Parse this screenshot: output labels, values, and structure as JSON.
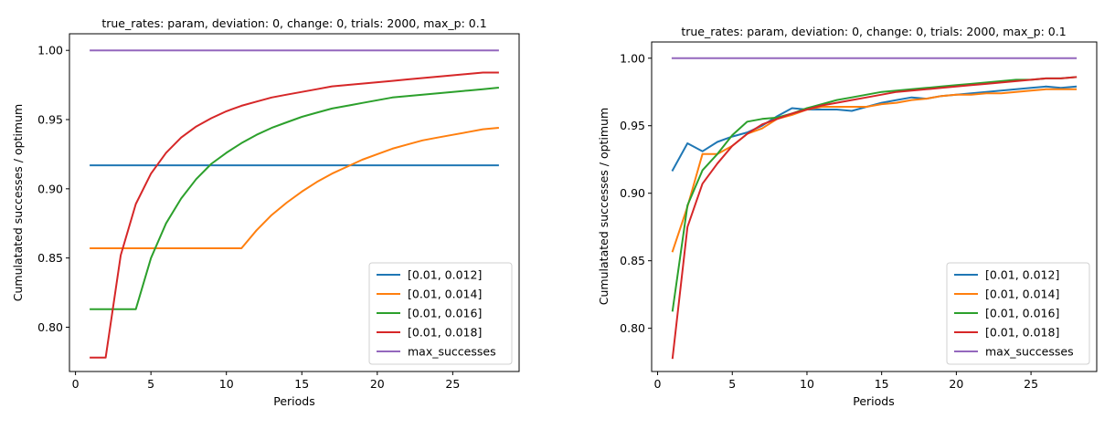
{
  "chart_data": [
    {
      "type": "line",
      "title": "true_rates: param, deviation: 0, change: 0, trials: 2000, max_p: 0.1",
      "xlabel": "Periods",
      "ylabel": "Cumulatated successes / optimum",
      "xlim": [
        -0.4,
        29.4
      ],
      "ylim": [
        0.768,
        1.012
      ],
      "xticks": [
        0,
        5,
        10,
        15,
        20,
        25
      ],
      "yticks": [
        0.8,
        0.85,
        0.9,
        0.95,
        1.0
      ],
      "ytick_labels": [
        "0.80",
        "0.85",
        "0.90",
        "0.95",
        "1.00"
      ],
      "grid": false,
      "legend_position": "lower right",
      "x": [
        1,
        2,
        3,
        4,
        5,
        6,
        7,
        8,
        9,
        10,
        11,
        12,
        13,
        14,
        15,
        16,
        17,
        18,
        19,
        20,
        21,
        22,
        23,
        24,
        25,
        26,
        27,
        28
      ],
      "series": [
        {
          "name": "[0.01, 0.012]",
          "color": "#1f77b4",
          "values": [
            0.917,
            0.917,
            0.917,
            0.917,
            0.917,
            0.917,
            0.917,
            0.917,
            0.917,
            0.917,
            0.917,
            0.917,
            0.917,
            0.917,
            0.917,
            0.917,
            0.917,
            0.917,
            0.917,
            0.917,
            0.917,
            0.917,
            0.917,
            0.917,
            0.917,
            0.917,
            0.917,
            0.917
          ]
        },
        {
          "name": "[0.01, 0.014]",
          "color": "#ff7f0e",
          "values": [
            0.857,
            0.857,
            0.857,
            0.857,
            0.857,
            0.857,
            0.857,
            0.857,
            0.857,
            0.857,
            0.857,
            0.87,
            0.881,
            0.89,
            0.898,
            0.905,
            0.911,
            0.916,
            0.921,
            0.925,
            0.929,
            0.932,
            0.935,
            0.937,
            0.939,
            0.941,
            0.943,
            0.944
          ]
        },
        {
          "name": "[0.01, 0.016]",
          "color": "#2ca02c",
          "values": [
            0.813,
            0.813,
            0.813,
            0.813,
            0.85,
            0.875,
            0.893,
            0.907,
            0.918,
            0.926,
            0.933,
            0.939,
            0.944,
            0.948,
            0.952,
            0.955,
            0.958,
            0.96,
            0.962,
            0.964,
            0.966,
            0.967,
            0.968,
            0.969,
            0.97,
            0.971,
            0.972,
            0.973
          ]
        },
        {
          "name": "[0.01, 0.018]",
          "color": "#d62728",
          "values": [
            0.778,
            0.778,
            0.852,
            0.889,
            0.911,
            0.926,
            0.937,
            0.945,
            0.951,
            0.956,
            0.96,
            0.963,
            0.966,
            0.968,
            0.97,
            0.972,
            0.974,
            0.975,
            0.976,
            0.977,
            0.978,
            0.979,
            0.98,
            0.981,
            0.982,
            0.983,
            0.984,
            0.984
          ]
        },
        {
          "name": "max_successes",
          "color": "#9467bd",
          "values": [
            1.0,
            1.0,
            1.0,
            1.0,
            1.0,
            1.0,
            1.0,
            1.0,
            1.0,
            1.0,
            1.0,
            1.0,
            1.0,
            1.0,
            1.0,
            1.0,
            1.0,
            1.0,
            1.0,
            1.0,
            1.0,
            1.0,
            1.0,
            1.0,
            1.0,
            1.0,
            1.0,
            1.0
          ]
        }
      ]
    },
    {
      "type": "line",
      "title": "true_rates: param, deviation: 0, change: 0, trials: 2000, max_p: 0.1",
      "xlabel": "Periods",
      "ylabel": "Cumulatated successes / optimum",
      "xlim": [
        -0.4,
        29.4
      ],
      "ylim": [
        0.768,
        1.012
      ],
      "xticks": [
        0,
        5,
        10,
        15,
        20,
        25
      ],
      "yticks": [
        0.8,
        0.85,
        0.9,
        0.95,
        1.0
      ],
      "ytick_labels": [
        "0.80",
        "0.85",
        "0.90",
        "0.95",
        "1.00"
      ],
      "grid": false,
      "legend_position": "lower right",
      "x": [
        1,
        2,
        3,
        4,
        5,
        6,
        7,
        8,
        9,
        10,
        11,
        12,
        13,
        14,
        15,
        16,
        17,
        18,
        19,
        20,
        21,
        22,
        23,
        24,
        25,
        26,
        27,
        28
      ],
      "series": [
        {
          "name": "[0.01, 0.012]",
          "color": "#1f77b4",
          "values": [
            0.917,
            0.937,
            0.931,
            0.938,
            0.942,
            0.945,
            0.95,
            0.957,
            0.963,
            0.962,
            0.962,
            0.962,
            0.961,
            0.964,
            0.967,
            0.969,
            0.971,
            0.97,
            0.972,
            0.973,
            0.974,
            0.975,
            0.976,
            0.977,
            0.978,
            0.979,
            0.978,
            0.979
          ]
        },
        {
          "name": "[0.01, 0.014]",
          "color": "#ff7f0e",
          "values": [
            0.857,
            0.89,
            0.929,
            0.929,
            0.935,
            0.944,
            0.948,
            0.955,
            0.958,
            0.962,
            0.964,
            0.964,
            0.964,
            0.964,
            0.966,
            0.967,
            0.969,
            0.97,
            0.972,
            0.973,
            0.973,
            0.974,
            0.974,
            0.975,
            0.976,
            0.977,
            0.977,
            0.977
          ]
        },
        {
          "name": "[0.01, 0.016]",
          "color": "#2ca02c",
          "values": [
            0.813,
            0.891,
            0.917,
            0.929,
            0.943,
            0.953,
            0.955,
            0.956,
            0.959,
            0.963,
            0.966,
            0.969,
            0.971,
            0.973,
            0.975,
            0.976,
            0.977,
            0.978,
            0.979,
            0.98,
            0.981,
            0.982,
            0.983,
            0.984,
            0.984,
            0.985,
            0.985,
            0.986
          ]
        },
        {
          "name": "[0.01, 0.018]",
          "color": "#d62728",
          "values": [
            0.778,
            0.875,
            0.907,
            0.922,
            0.935,
            0.944,
            0.951,
            0.955,
            0.959,
            0.962,
            0.965,
            0.967,
            0.969,
            0.971,
            0.973,
            0.975,
            0.976,
            0.977,
            0.978,
            0.979,
            0.98,
            0.981,
            0.982,
            0.983,
            0.984,
            0.985,
            0.985,
            0.986
          ]
        },
        {
          "name": "max_successes",
          "color": "#9467bd",
          "values": [
            1.0,
            1.0,
            1.0,
            1.0,
            1.0,
            1.0,
            1.0,
            1.0,
            1.0,
            1.0,
            1.0,
            1.0,
            1.0,
            1.0,
            1.0,
            1.0,
            1.0,
            1.0,
            1.0,
            1.0,
            1.0,
            1.0,
            1.0,
            1.0,
            1.0,
            1.0,
            1.0,
            1.0
          ]
        }
      ]
    }
  ]
}
